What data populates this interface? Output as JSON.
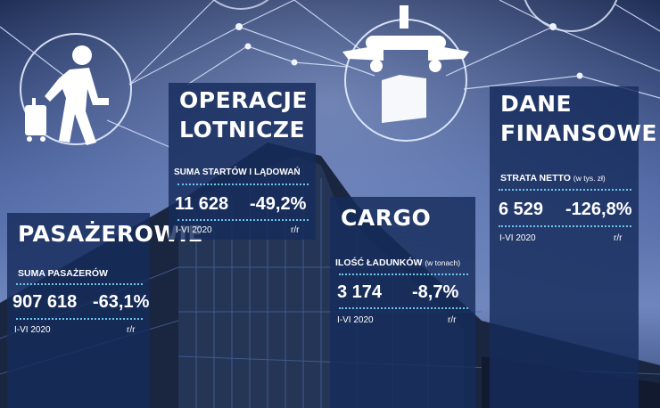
{
  "colors": {
    "panel": "#162c5c",
    "accent": "#6cc7ee",
    "sky_top": "#1b2a52",
    "sky_mid": "#6f86bd"
  },
  "icons": [
    "passenger-with-luggage-icon",
    "airplane-cargo-icon",
    "network-node-icon"
  ],
  "panels": {
    "passengers": {
      "title": "PASAŻEROWIE",
      "label": "SUMA PASAŻERÓW",
      "label_note": "",
      "value": "907 618",
      "change": "-63,1%",
      "period": "I-VI 2020",
      "rr": "r/r"
    },
    "operations": {
      "title_line1": "OPERACJE",
      "title_line2": "LOTNICZE",
      "label": "SUMA STARTÓW I LĄDOWAŃ",
      "label_note": "",
      "value": "11 628",
      "change": "-49,2%",
      "period": "I-VI 2020",
      "rr": "r/r"
    },
    "cargo": {
      "title": "CARGO",
      "label": "ILOŚĆ ŁADUNKÓW",
      "label_note": "(w tonach)",
      "value": "3 174",
      "change": "-8,7%",
      "period": "I-VI 2020",
      "rr": "r/r"
    },
    "finance": {
      "title_line1": "DANE",
      "title_line2": "FINANSOWE",
      "label": "STRATA NETTO",
      "label_note": "(w tys. zł)",
      "value": "6 529",
      "change": "-126,8%",
      "period": "I-VI 2020",
      "rr": "r/r"
    }
  }
}
